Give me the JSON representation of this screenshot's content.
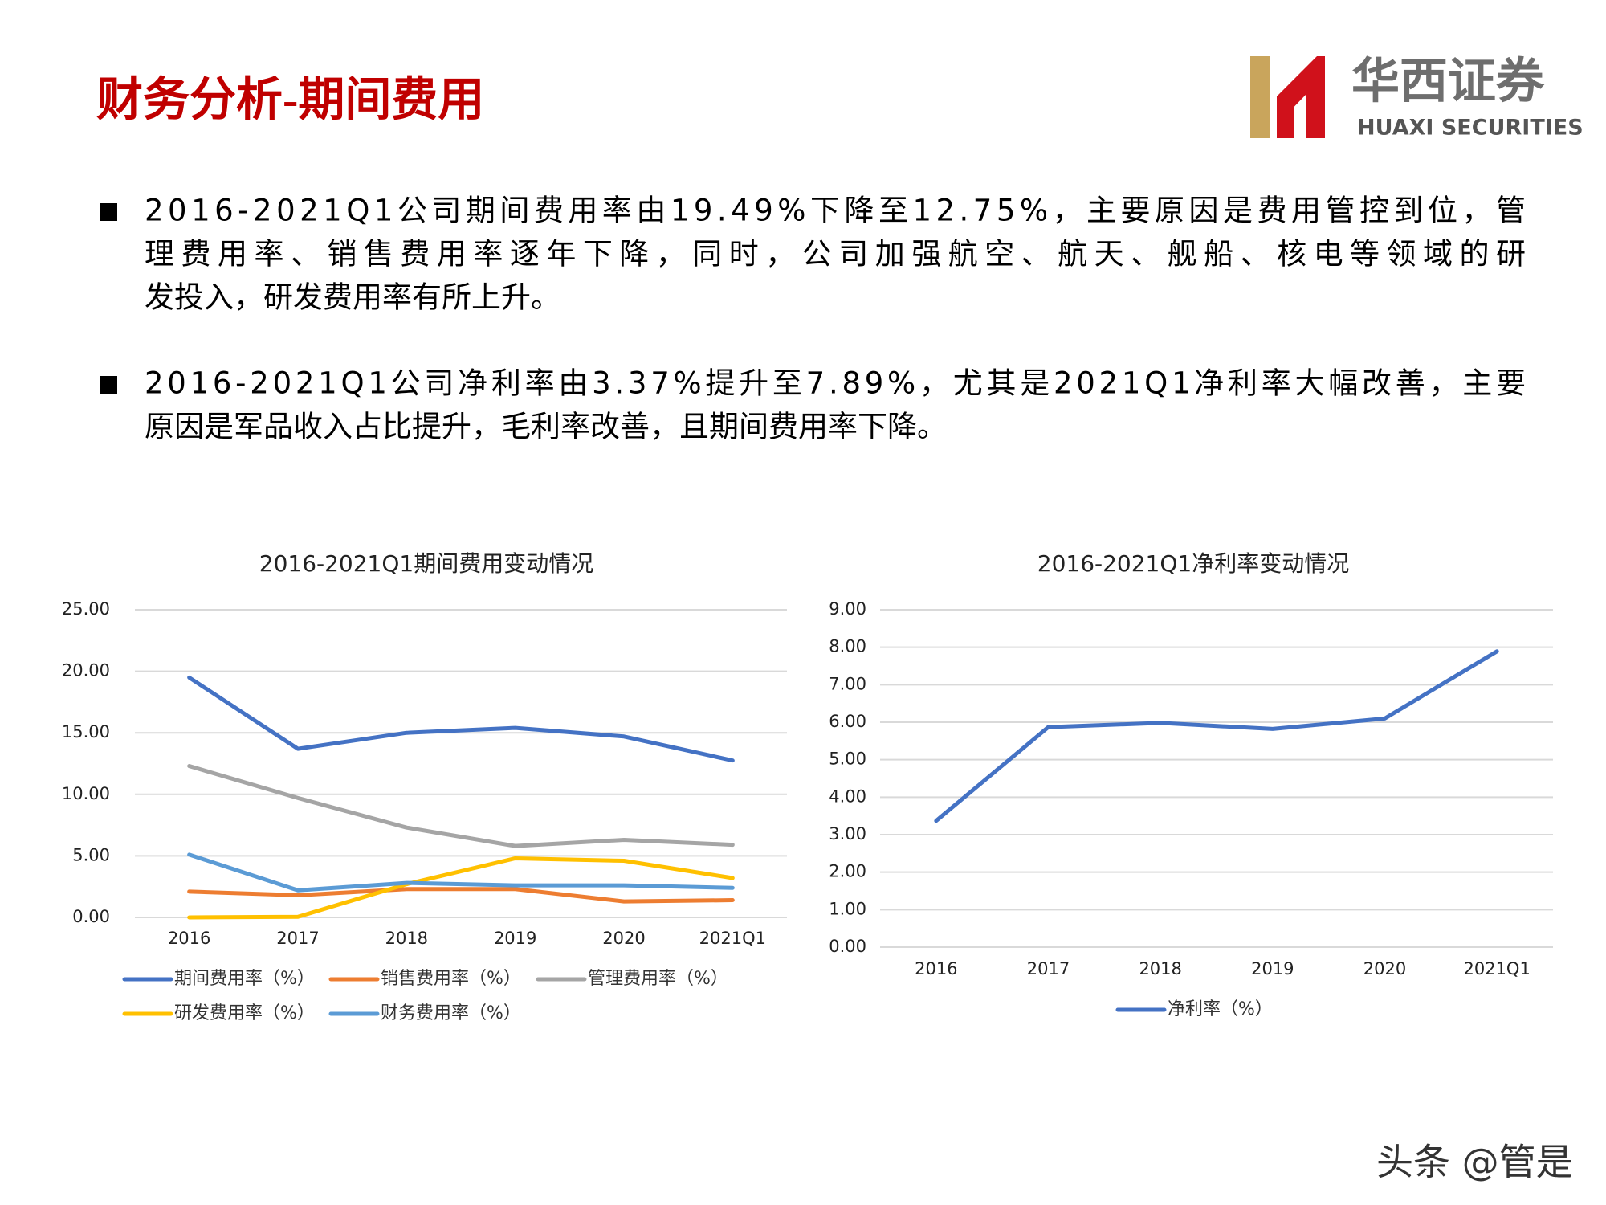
{
  "header": {
    "title": "财务分析-期间费用",
    "logo_name": "华西证券",
    "logo_en": "HUAXI SECURITIES"
  },
  "bullets": [
    {
      "lines": [
        "2016-2021Q1公司期间费用率由19.49%下降至12.75%，主要原因是费用管控到位，管",
        "理费用率、销售费用率逐年下降，同时，公司加强航空、航天、舰船、核电等领域的研",
        "发投入，研发费用率有所上升。"
      ]
    },
    {
      "lines": [
        "2016-2021Q1公司净利率由3.37%提升至7.89%，尤其是2021Q1净利率大幅改善，主要",
        "原因是军品收入占比提升，毛利率改善，且期间费用率下降。"
      ]
    }
  ],
  "watermark": "头条 @管是",
  "chart_data": [
    {
      "type": "line",
      "title": "2016-2021Q1期间费用变动情况",
      "categories": [
        "2016",
        "2017",
        "2018",
        "2019",
        "2020",
        "2021Q1"
      ],
      "series": [
        {
          "name": "期间费用率（%）",
          "color": "#4472c4",
          "values": [
            19.49,
            13.7,
            15.0,
            15.4,
            14.7,
            12.75
          ]
        },
        {
          "name": "销售费用率（%）",
          "color": "#ed7d31",
          "values": [
            2.1,
            1.8,
            2.3,
            2.3,
            1.3,
            1.4
          ]
        },
        {
          "name": "管理费用率（%）",
          "color": "#a5a5a5",
          "values": [
            12.3,
            9.7,
            7.3,
            5.8,
            6.3,
            5.9
          ]
        },
        {
          "name": "研发费用率（%）",
          "color": "#ffc000",
          "values": [
            0.0,
            0.05,
            2.7,
            4.8,
            4.6,
            3.2
          ]
        },
        {
          "name": "财务费用率（%）",
          "color": "#5b9bd5",
          "values": [
            5.1,
            2.2,
            2.8,
            2.6,
            2.6,
            2.4
          ]
        }
      ],
      "ylim": [
        0,
        25
      ],
      "yticks": [
        {
          "value": 0,
          "label": "0.00"
        },
        {
          "value": 5,
          "label": "5.00"
        },
        {
          "value": 10,
          "label": "10.00"
        },
        {
          "value": 15,
          "label": "15.00"
        },
        {
          "value": 20,
          "label": "20.00"
        },
        {
          "value": 25,
          "label": "25.00"
        }
      ],
      "grid": true,
      "legend": "bottom"
    },
    {
      "type": "line",
      "title": "2016-2021Q1净利率变动情况",
      "categories": [
        "2016",
        "2017",
        "2018",
        "2019",
        "2020",
        "2021Q1"
      ],
      "series": [
        {
          "name": "净利率（%）",
          "color": "#4472c4",
          "values": [
            3.37,
            5.87,
            5.98,
            5.82,
            6.1,
            7.89
          ]
        }
      ],
      "ylim": [
        0,
        9
      ],
      "yticks": [
        {
          "value": 0,
          "label": "0.00"
        },
        {
          "value": 1,
          "label": "1.00"
        },
        {
          "value": 2,
          "label": "2.00"
        },
        {
          "value": 3,
          "label": "3.00"
        },
        {
          "value": 4,
          "label": "4.00"
        },
        {
          "value": 5,
          "label": "5.00"
        },
        {
          "value": 6,
          "label": "6.00"
        },
        {
          "value": 7,
          "label": "7.00"
        },
        {
          "value": 8,
          "label": "8.00"
        },
        {
          "value": 9,
          "label": "9.00"
        }
      ],
      "grid": true,
      "legend": "bottom"
    }
  ]
}
